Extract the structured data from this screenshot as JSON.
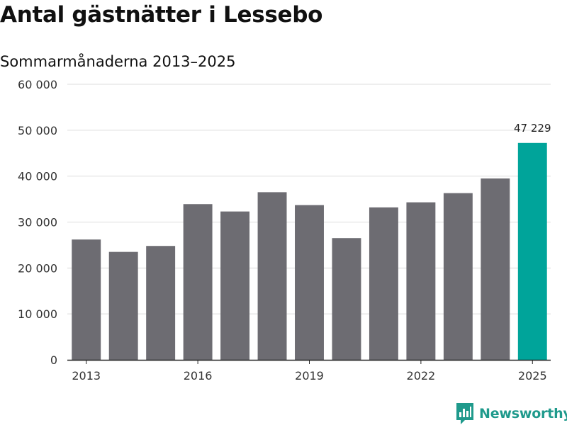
{
  "header": {
    "title": "Antal gästnätter i Lessebo",
    "subtitle": "Sommarmånaderna 2013–2025"
  },
  "brand": {
    "name": "Newsworthy",
    "icon": "newsworthy-logo-icon",
    "color": "#1f9a8c"
  },
  "chart_data": {
    "type": "bar",
    "title": "Antal gästnätter i Lessebo",
    "subtitle": "Sommarmånaderna 2013–2025",
    "categories": [
      2013,
      2014,
      2015,
      2016,
      2017,
      2018,
      2019,
      2020,
      2021,
      2022,
      2023,
      2024,
      2025
    ],
    "values": [
      26200,
      23500,
      24800,
      33900,
      32300,
      36500,
      33700,
      26500,
      33200,
      34300,
      36300,
      39500,
      47229
    ],
    "x_tick_labels": [
      "2013",
      "2016",
      "2019",
      "2022",
      "2025"
    ],
    "y_tick_labels": [
      "0",
      "10 000",
      "20 000",
      "30 000",
      "40 000",
      "50 000",
      "60 000"
    ],
    "ylim": [
      0,
      60000
    ],
    "grid": true,
    "legend": "none",
    "highlight_index": 12,
    "annotation": {
      "index": 12,
      "text": "47 229"
    },
    "colors": {
      "bar": "#6d6c72",
      "highlight": "#00a49a",
      "grid": "#dcdcdc",
      "axis": "#222222"
    }
  }
}
